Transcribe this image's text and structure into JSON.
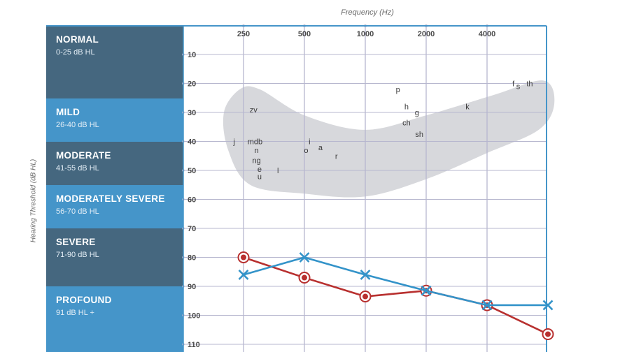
{
  "colors": {
    "band_dark": "#45677f",
    "band_light": "#4595c9",
    "grid": "#b7b7cf",
    "frame": "#4595c9",
    "banana": "#d7d8dc",
    "series_red": "#b8302f",
    "series_blue": "#3393c9"
  },
  "bands": [
    {
      "name": "NORMAL",
      "range": "0-25 dB HL",
      "shade": "dark"
    },
    {
      "name": "MILD",
      "range": "26-40 dB HL",
      "shade": "light"
    },
    {
      "name": "MODERATE",
      "range": "41-55 dB HL",
      "shade": "dark"
    },
    {
      "name": "MODERATELY SEVERE",
      "range": "56-70 dB HL",
      "shade": "light"
    },
    {
      "name": "SEVERE",
      "range": "71-90 dB HL",
      "shade": "dark"
    },
    {
      "name": "PROFOUND",
      "range": "91 dB HL +",
      "shade": "light"
    }
  ],
  "chart_data": {
    "type": "line",
    "title": "",
    "xlabel": "Frequency (Hz)",
    "ylabel": "Hearing Threshold (dB HL)",
    "x_scale": "log2",
    "x_ticks": [
      250,
      500,
      1000,
      2000,
      4000
    ],
    "x_tick_labels": [
      "250",
      "500",
      "1000",
      "2000",
      "4000"
    ],
    "y_ticks": [
      10,
      20,
      30,
      40,
      50,
      60,
      70,
      80,
      90,
      100,
      110
    ],
    "y_tick_labels": [
      "10",
      "20",
      "30",
      "40",
      "50",
      "60",
      "70",
      "80",
      "90",
      "100",
      "110"
    ],
    "ylim": [
      0,
      112
    ],
    "y_inverted": true,
    "grid": true,
    "series": [
      {
        "marker": "circle-o",
        "color": "#b8302f",
        "x": [
          250,
          500,
          1000,
          2000,
          4000,
          8000
        ],
        "y": [
          80,
          87,
          93.5,
          91.5,
          96.5,
          106.5
        ]
      },
      {
        "marker": "x",
        "color": "#3393c9",
        "x": [
          250,
          500,
          1000,
          2000,
          4000,
          8000
        ],
        "y": [
          86,
          80,
          86,
          91.5,
          96.5,
          96.5
        ]
      }
    ],
    "speech_banana": {
      "label_points": [
        {
          "text": "zv",
          "x": 280,
          "y": 29
        },
        {
          "text": "j",
          "x": 225,
          "y": 40
        },
        {
          "text": "mdb",
          "x": 285,
          "y": 40
        },
        {
          "text": "n",
          "x": 290,
          "y": 43
        },
        {
          "text": "ng",
          "x": 290,
          "y": 46.5
        },
        {
          "text": "e",
          "x": 300,
          "y": 49.5
        },
        {
          "text": "u",
          "x": 300,
          "y": 52
        },
        {
          "text": "l",
          "x": 370,
          "y": 50
        },
        {
          "text": "i",
          "x": 530,
          "y": 40
        },
        {
          "text": "o",
          "x": 510,
          "y": 43
        },
        {
          "text": "a",
          "x": 600,
          "y": 42
        },
        {
          "text": "r",
          "x": 720,
          "y": 45
        },
        {
          "text": "p",
          "x": 1450,
          "y": 22
        },
        {
          "text": "h",
          "x": 1600,
          "y": 28
        },
        {
          "text": "g",
          "x": 1800,
          "y": 30
        },
        {
          "text": "ch",
          "x": 1600,
          "y": 33.5
        },
        {
          "text": "sh",
          "x": 1850,
          "y": 37.5
        },
        {
          "text": "k",
          "x": 3200,
          "y": 28
        },
        {
          "text": "f",
          "x": 5400,
          "y": 20
        },
        {
          "text": "s",
          "x": 5700,
          "y": 21
        },
        {
          "text": "th",
          "x": 6500,
          "y": 20
        }
      ]
    }
  }
}
